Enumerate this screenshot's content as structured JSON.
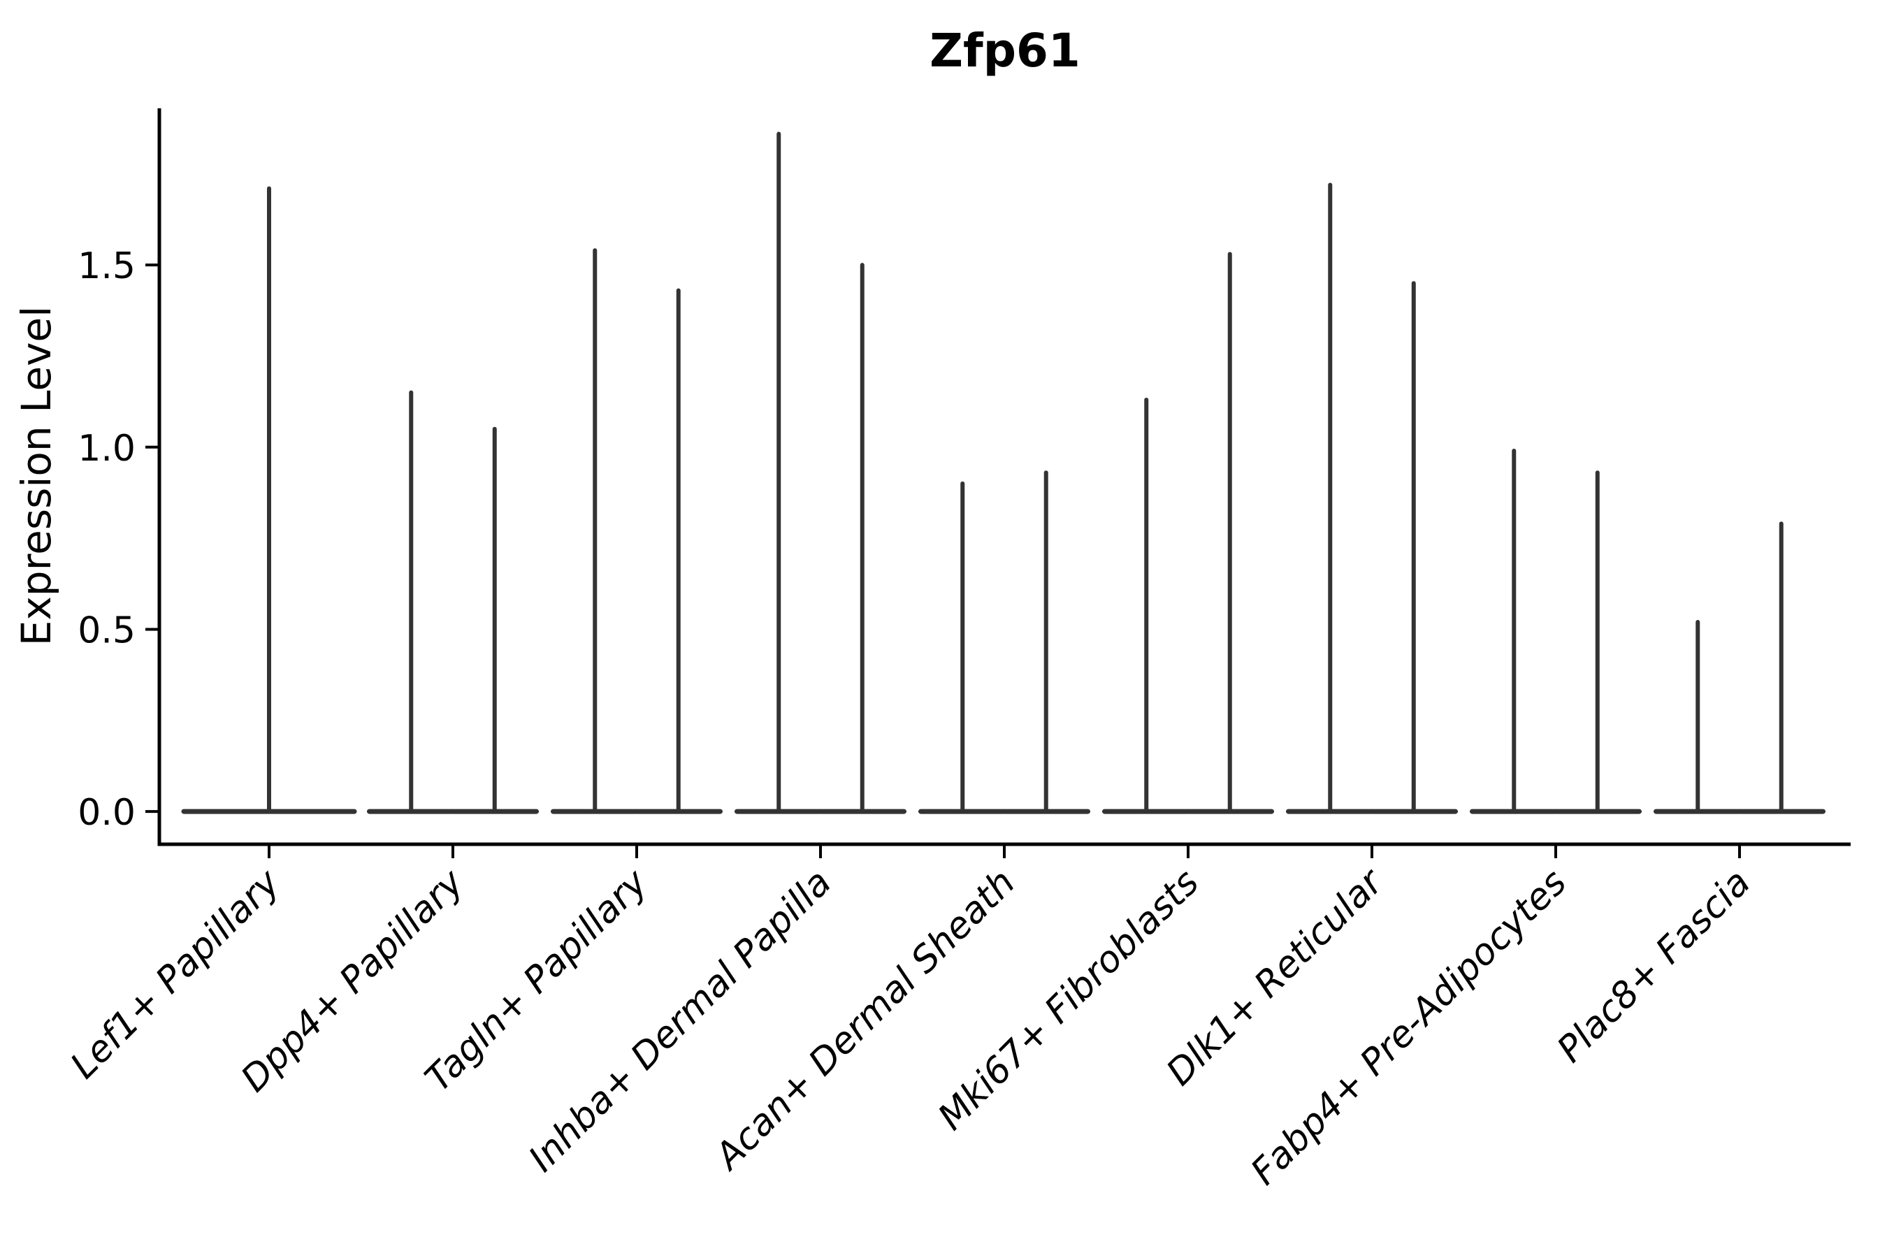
{
  "chart_data": {
    "type": "violin",
    "title": "Zfp61",
    "ylabel": "Expression Level",
    "xlabel": "",
    "ytick_labels": [
      "0.0",
      "0.5",
      "1.0",
      "1.5"
    ],
    "ytick_values": [
      0.0,
      0.5,
      1.0,
      1.5
    ],
    "ylim": [
      -0.09,
      1.93
    ],
    "grid": false,
    "legend": "none",
    "categories": [
      "Lef1+ Papillary",
      "Dpp4+ Papillary",
      "Tagln+ Papillary",
      "Inhba+ Dermal Papilla",
      "Acan+ Dermal Sheath",
      "Mki67+ Fibroblasts",
      "Dlk1+ Reticular",
      "Fabp4+ Pre-Adipocytes",
      "Plac8+ Fascia"
    ],
    "violin_max_expression": [
      [
        1.71
      ],
      [
        1.15,
        1.05
      ],
      [
        1.54,
        1.43
      ],
      [
        1.86,
        1.5
      ],
      [
        0.9,
        0.93
      ],
      [
        1.13,
        1.53
      ],
      [
        1.72,
        1.45
      ],
      [
        0.99,
        0.93
      ],
      [
        0.52,
        0.79
      ]
    ],
    "violin_baseline_value": 0.0,
    "violin_color": "#333333",
    "axis_color": "#000000",
    "text_color": "#000000",
    "background_color": "#ffffff"
  }
}
